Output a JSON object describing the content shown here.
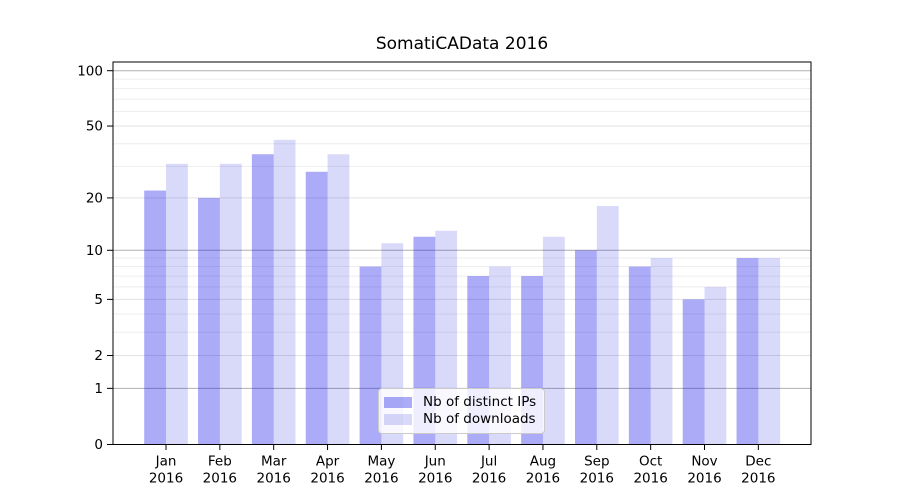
{
  "title": "SomatiCAData 2016",
  "chart_data": {
    "type": "bar",
    "title": "SomatiCAData 2016",
    "categories": [
      "Jan",
      "Feb",
      "Mar",
      "Apr",
      "May",
      "Jun",
      "Jul",
      "Aug",
      "Sep",
      "Oct",
      "Nov",
      "Dec"
    ],
    "category_year": "2016",
    "series": [
      {
        "name": "Nb of distinct IPs",
        "color": "rgba(13,13,232,0.35)",
        "values": [
          22,
          20,
          35,
          28,
          8,
          12,
          7,
          7,
          10,
          8,
          5,
          9
        ]
      },
      {
        "name": "Nb of downloads",
        "color": "rgba(0,0,215,0.15)",
        "values": [
          31,
          31,
          42,
          35,
          11,
          13,
          8,
          12,
          18,
          9,
          6,
          9
        ]
      }
    ],
    "y_scale": "log1p",
    "y_axis_ticks": [
      0,
      1,
      2,
      5,
      10,
      20,
      50,
      100
    ],
    "y_minor_gridlines": [
      3,
      4,
      6,
      7,
      8,
      9,
      30,
      40,
      60,
      70,
      80,
      90
    ],
    "ylim": [
      0,
      111
    ],
    "xlabel": "",
    "ylabel": "",
    "grid": "on",
    "legend_position": "bottom-center"
  },
  "legend": {
    "items": [
      {
        "label": "Nb of distinct IPs"
      },
      {
        "label": "Nb of downloads"
      }
    ]
  },
  "colors": {
    "background": "#ffffff",
    "axis": "#000000",
    "grid_decade": "#b0b0b0",
    "grid_major": "#e2e2e2",
    "grid_minor": "#eeeeee",
    "legend_border": "#cbcbcb",
    "legend_bg": "rgba(255,255,255,0.8)",
    "bar_distinct_ips": "rgba(13,13,232,0.35)",
    "bar_downloads": "rgba(0,0,215,0.15)"
  }
}
